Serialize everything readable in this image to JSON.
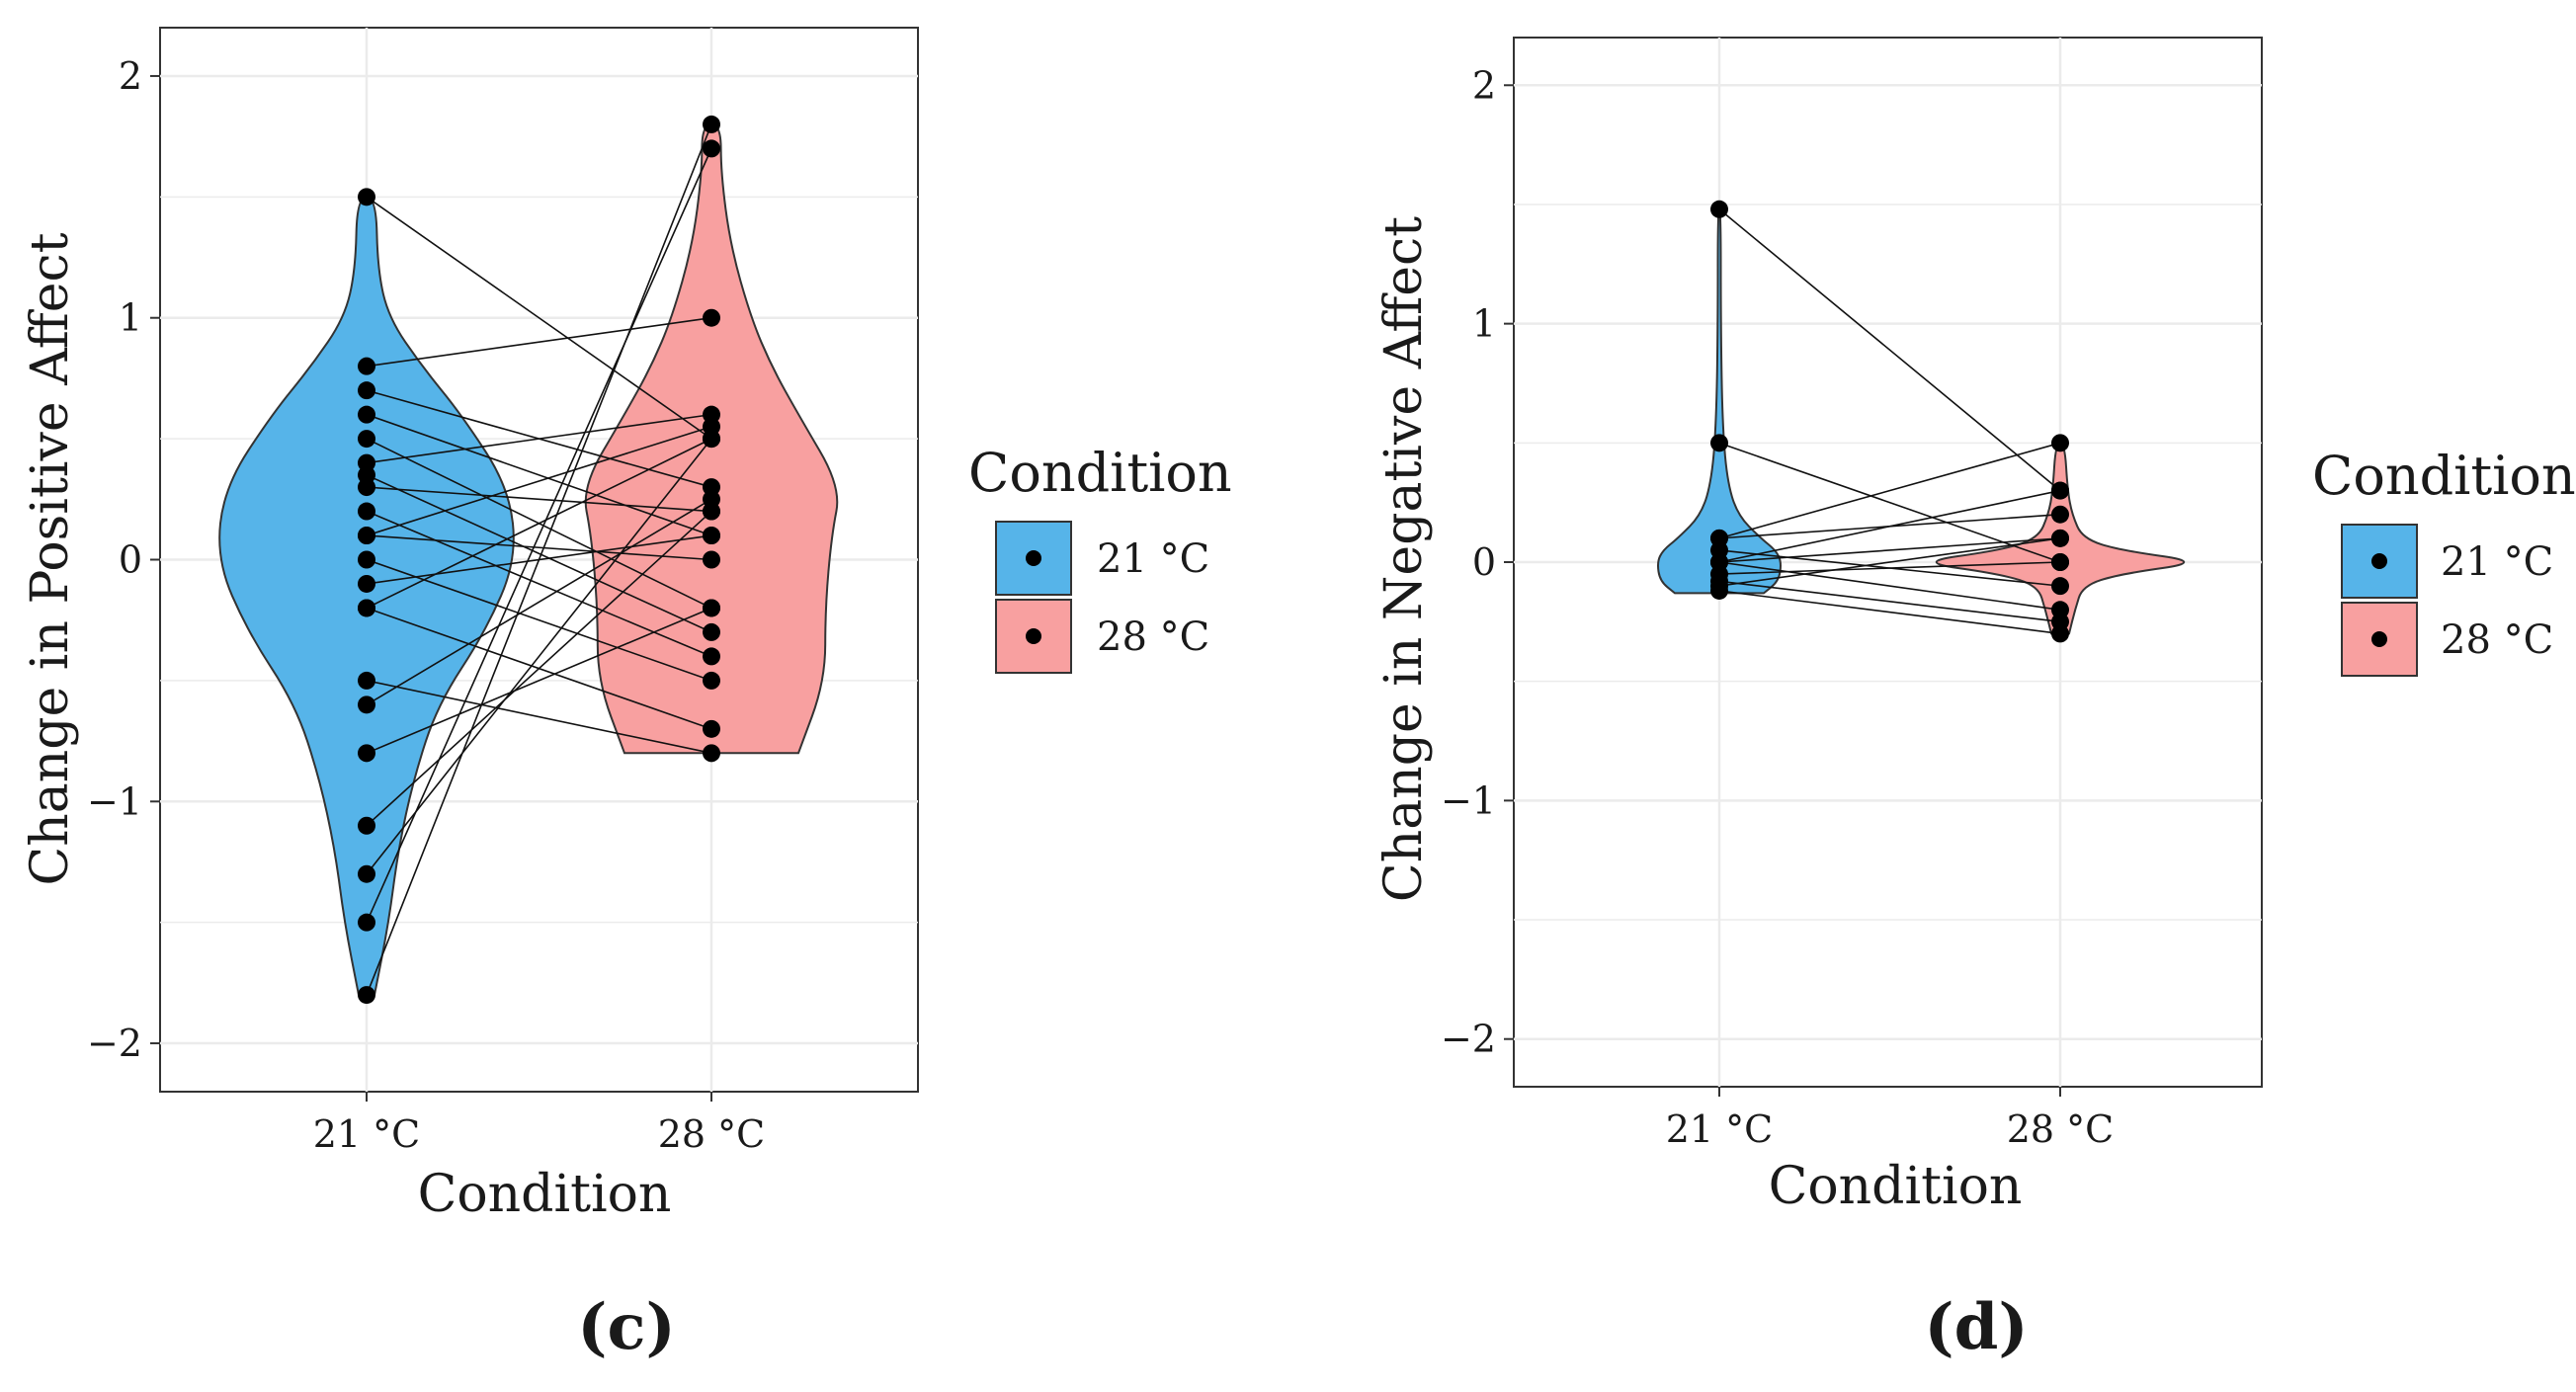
{
  "colors": {
    "c21": "#56B4E9",
    "c28": "#F8A0A0",
    "grid": "#EBEBEB",
    "frame": "#333333",
    "point": "#000000"
  },
  "legend": {
    "title": "Condition",
    "items": [
      {
        "label": "21 °C",
        "color": "#56B4E9"
      },
      {
        "label": "28 °C",
        "color": "#F8A0A0"
      }
    ]
  },
  "chart_data": [
    {
      "type": "violin",
      "panel_label": "(c)",
      "panel_letter": "c",
      "ylabel": "Change in Positive Affect",
      "xlabel": "Condition",
      "categories": [
        "21 °C",
        "28 °C"
      ],
      "ylim": [
        -2.2,
        2.2
      ],
      "yticks": [
        -2,
        -1,
        0,
        1,
        2
      ],
      "ytick_labels": [
        "−2",
        "−1",
        "0",
        "1",
        "2"
      ],
      "paired": [
        [
          1.5,
          0.5
        ],
        [
          0.8,
          1.0
        ],
        [
          0.7,
          0.3
        ],
        [
          0.6,
          0.1
        ],
        [
          0.5,
          -0.2
        ],
        [
          0.4,
          0.6
        ],
        [
          0.35,
          -0.3
        ],
        [
          0.3,
          0.2
        ],
        [
          0.2,
          -0.4
        ],
        [
          0.1,
          0.55
        ],
        [
          0.1,
          0.0
        ],
        [
          0.0,
          -0.5
        ],
        [
          -0.1,
          0.1
        ],
        [
          -0.2,
          0.5
        ],
        [
          -0.2,
          -0.7
        ],
        [
          -0.5,
          -0.8
        ],
        [
          -0.6,
          0.25
        ],
        [
          -0.8,
          -0.2
        ],
        [
          -1.1,
          0.2
        ],
        [
          -1.3,
          0.5
        ],
        [
          -1.5,
          1.7
        ],
        [
          -1.8,
          1.8
        ]
      ],
      "violin_21": [
        [
          -1.8,
          0.05
        ],
        [
          -1.5,
          0.14
        ],
        [
          -1.2,
          0.2
        ],
        [
          -0.9,
          0.3
        ],
        [
          -0.6,
          0.45
        ],
        [
          -0.3,
          0.75
        ],
        [
          0.0,
          0.95
        ],
        [
          0.3,
          0.9
        ],
        [
          0.6,
          0.6
        ],
        [
          0.8,
          0.35
        ],
        [
          1.0,
          0.14
        ],
        [
          1.2,
          0.07
        ],
        [
          1.5,
          0.06
        ]
      ],
      "violin_28": [
        [
          -0.8,
          0.55
        ],
        [
          -0.5,
          0.72
        ],
        [
          -0.2,
          0.72
        ],
        [
          0.1,
          0.76
        ],
        [
          0.3,
          0.82
        ],
        [
          0.6,
          0.55
        ],
        [
          0.8,
          0.38
        ],
        [
          1.0,
          0.25
        ],
        [
          1.3,
          0.12
        ],
        [
          1.6,
          0.06
        ],
        [
          1.8,
          0.06
        ]
      ]
    },
    {
      "type": "violin",
      "panel_label": "(d)",
      "panel_letter": "d",
      "ylabel": "Change in Negative Affect",
      "xlabel": "Condition",
      "categories": [
        "21 °C",
        "28 °C"
      ],
      "ylim": [
        -2.2,
        2.2
      ],
      "yticks": [
        -2,
        -1,
        0,
        1,
        2
      ],
      "ytick_labels": [
        "−2",
        "−1",
        "0",
        "1",
        "2"
      ],
      "paired": [
        [
          1.48,
          0.3
        ],
        [
          0.5,
          0.0
        ],
        [
          0.1,
          0.5
        ],
        [
          0.1,
          0.2
        ],
        [
          0.05,
          -0.1
        ],
        [
          0.0,
          0.3
        ],
        [
          0.0,
          0.1
        ],
        [
          0.0,
          -0.2
        ],
        [
          -0.05,
          0.0
        ],
        [
          -0.08,
          -0.25
        ],
        [
          -0.1,
          0.1
        ],
        [
          -0.12,
          -0.3
        ]
      ],
      "violin_21": [
        [
          -0.13,
          0.3
        ],
        [
          -0.08,
          0.4
        ],
        [
          0.0,
          0.42
        ],
        [
          0.05,
          0.38
        ],
        [
          0.1,
          0.28
        ],
        [
          0.2,
          0.12
        ],
        [
          0.35,
          0.05
        ],
        [
          0.6,
          0.02
        ],
        [
          1.0,
          0.01
        ],
        [
          1.48,
          0.01
        ]
      ],
      "violin_28": [
        [
          -0.3,
          0.06
        ],
        [
          -0.2,
          0.1
        ],
        [
          -0.1,
          0.15
        ],
        [
          -0.05,
          0.4
        ],
        [
          0.0,
          0.98
        ],
        [
          0.05,
          0.4
        ],
        [
          0.1,
          0.15
        ],
        [
          0.2,
          0.08
        ],
        [
          0.3,
          0.05
        ],
        [
          0.5,
          0.03
        ]
      ]
    }
  ]
}
